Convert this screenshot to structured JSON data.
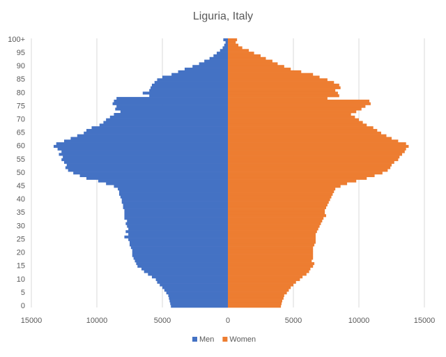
{
  "chart_data": {
    "type": "pyramid",
    "title": "Liguria, Italy",
    "categories": [
      "0",
      null,
      null,
      null,
      null,
      "5",
      null,
      null,
      null,
      null,
      "10",
      null,
      null,
      null,
      null,
      "15",
      null,
      null,
      null,
      null,
      "20",
      null,
      null,
      null,
      null,
      "25",
      null,
      null,
      null,
      null,
      "30",
      null,
      null,
      null,
      null,
      "35",
      null,
      null,
      null,
      null,
      "40",
      null,
      null,
      null,
      null,
      "45",
      null,
      null,
      null,
      null,
      "50",
      null,
      null,
      null,
      null,
      "55",
      null,
      null,
      null,
      null,
      "60",
      null,
      null,
      null,
      null,
      "65",
      null,
      null,
      null,
      null,
      "70",
      null,
      null,
      null,
      null,
      "75",
      null,
      null,
      null,
      null,
      "80",
      null,
      null,
      null,
      null,
      "85",
      null,
      null,
      null,
      null,
      "90",
      null,
      null,
      null,
      null,
      "95",
      null,
      null,
      null,
      null,
      "100+"
    ],
    "series": [
      {
        "name": "Men",
        "color": "#4472c4",
        "values": [
          -4350,
          -4400,
          -4450,
          -4500,
          -4550,
          -4700,
          -4850,
          -5000,
          -5200,
          -5400,
          -5500,
          -5800,
          -6100,
          -6400,
          -6600,
          -6900,
          -7000,
          -7100,
          -7200,
          -7300,
          -7300,
          -7300,
          -7400,
          -7500,
          -7500,
          -7600,
          -7900,
          -7600,
          -7800,
          -7600,
          -7700,
          -7800,
          -7700,
          -7900,
          -7900,
          -7900,
          -7900,
          -8000,
          -8000,
          -8100,
          -8100,
          -8200,
          -8300,
          -8300,
          -8400,
          -8700,
          -9300,
          -9900,
          -10800,
          -11300,
          -11800,
          -12200,
          -12400,
          -12300,
          -12500,
          -12700,
          -12600,
          -12900,
          -12700,
          -13000,
          -13300,
          -13100,
          -12500,
          -12000,
          -11500,
          -11000,
          -10800,
          -10400,
          -9800,
          -9500,
          -9300,
          -9000,
          -8700,
          -8200,
          -8600,
          -8500,
          -8800,
          -8700,
          -8500,
          -6000,
          -6500,
          -6000,
          -5900,
          -5800,
          -5600,
          -5400,
          -5000,
          -4300,
          -3800,
          -3300,
          -2700,
          -2200,
          -1800,
          -1400,
          -1100,
          -850,
          -600,
          -400,
          -280,
          -180,
          -350
        ]
      },
      {
        "name": "Women",
        "color": "#ed7d31",
        "values": [
          4050,
          4100,
          4150,
          4250,
          4300,
          4500,
          4650,
          4800,
          5000,
          5200,
          5500,
          5700,
          6000,
          6200,
          6300,
          6500,
          6600,
          6400,
          6500,
          6500,
          6500,
          6500,
          6500,
          6600,
          6700,
          6700,
          6700,
          6700,
          6800,
          6900,
          7000,
          7100,
          7200,
          7300,
          7500,
          7400,
          7400,
          7500,
          7600,
          7700,
          7800,
          7900,
          8000,
          8100,
          8200,
          8600,
          9100,
          9800,
          10600,
          11200,
          11800,
          12200,
          12400,
          12500,
          12700,
          13000,
          13100,
          13300,
          13500,
          13600,
          13800,
          13600,
          13000,
          12500,
          12100,
          11700,
          11400,
          11100,
          10600,
          10300,
          10000,
          9700,
          9400,
          9800,
          10200,
          10500,
          10900,
          10800,
          7600,
          8500,
          8400,
          8200,
          8600,
          8500,
          8100,
          7600,
          7000,
          6500,
          5600,
          4800,
          4300,
          3800,
          3400,
          2900,
          2500,
          2000,
          1600,
          1100,
          800,
          600,
          700
        ]
      }
    ],
    "xlim": [
      -15000,
      15000
    ],
    "xticks": [
      {
        "value": -15000,
        "label": "15000"
      },
      {
        "value": -10000,
        "label": "10000"
      },
      {
        "value": -5000,
        "label": "5000"
      },
      0,
      5000,
      10000,
      15000
    ],
    "grid": true,
    "legend": "bottom"
  }
}
